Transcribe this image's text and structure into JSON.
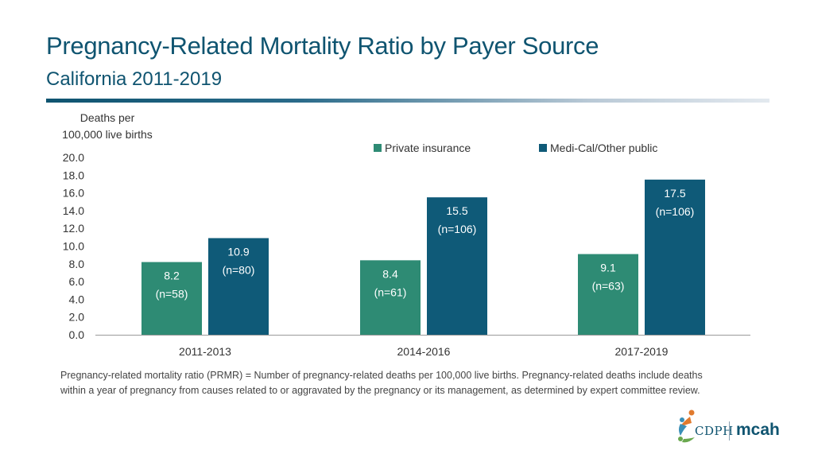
{
  "header": {
    "title": "Pregnancy-Related Mortality Ratio by Payer Source",
    "subtitle": "California 2011-2019"
  },
  "chart_data": {
    "type": "bar",
    "ylabel_line1": "Deaths per",
    "ylabel_line2": "100,000 live births",
    "ylim": [
      0,
      20
    ],
    "yticks": [
      "0.0",
      "2.0",
      "4.0",
      "6.0",
      "8.0",
      "10.0",
      "12.0",
      "14.0",
      "16.0",
      "18.0",
      "20.0"
    ],
    "categories": [
      "2011-2013",
      "2014-2016",
      "2017-2019"
    ],
    "series": [
      {
        "name": "Private insurance",
        "color": "#2e8b74",
        "values": [
          8.2,
          8.4,
          9.1
        ],
        "labels": [
          "8.2",
          "8.4",
          "9.1"
        ],
        "n_labels": [
          "(n=58)",
          "(n=61)",
          "(n=63)"
        ]
      },
      {
        "name": "Medi-Cal/Other public",
        "color": "#0f5a78",
        "values": [
          10.9,
          15.5,
          17.5
        ],
        "labels": [
          "10.9",
          "15.5",
          "17.5"
        ],
        "n_labels": [
          "(n=80)",
          "(n=106)",
          "(n=106)"
        ]
      }
    ],
    "legend_position": "top-right",
    "grid": false
  },
  "footnote": "Pregnancy-related mortality ratio (PRMR) = Number of pregnancy-related deaths per 100,000 live births. Pregnancy-related deaths include deaths within a year of pregnancy from causes related to or aggravated by the pregnancy or its management, as determined by expert committee review.",
  "logo": {
    "org": "CDPH",
    "division": "mcah"
  }
}
